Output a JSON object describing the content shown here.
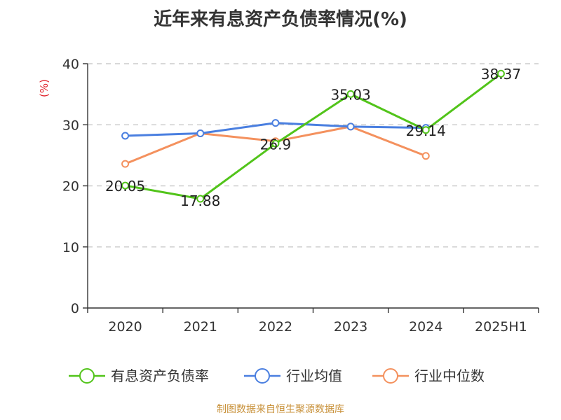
{
  "chart_data": {
    "type": "line",
    "title": "近年来有息资产负债率情况(%)",
    "ylabel": "(%)",
    "xlabel": "",
    "ylim": [
      0,
      40
    ],
    "yticks": [
      "0",
      "10",
      "20",
      "30",
      "40"
    ],
    "grid": true,
    "legend_position": "bottom",
    "categories": [
      "2020",
      "2021",
      "2022",
      "2023",
      "2024",
      "2025H1"
    ],
    "series": [
      {
        "name": "有息资产负债率",
        "color": "#52c41a",
        "values": [
          20.05,
          17.88,
          26.9,
          35.03,
          29.14,
          38.37
        ],
        "labels": [
          "20.05",
          "17.88",
          "26.9",
          "35.03",
          "29.14",
          "38.37"
        ]
      },
      {
        "name": "行业均值",
        "color": "#4a7fe0",
        "values": [
          28.2,
          28.6,
          30.3,
          29.7,
          29.5,
          null
        ]
      },
      {
        "name": "行业中位数",
        "color": "#f4915e",
        "values": [
          23.6,
          28.6,
          27.3,
          29.7,
          24.9,
          null
        ]
      }
    ],
    "source": "制图数据来自恒生聚源数据库"
  },
  "colors": {
    "axis": "#333333",
    "grid": "#cccccc",
    "unit": "#e0232b",
    "source": "#c8913a"
  }
}
